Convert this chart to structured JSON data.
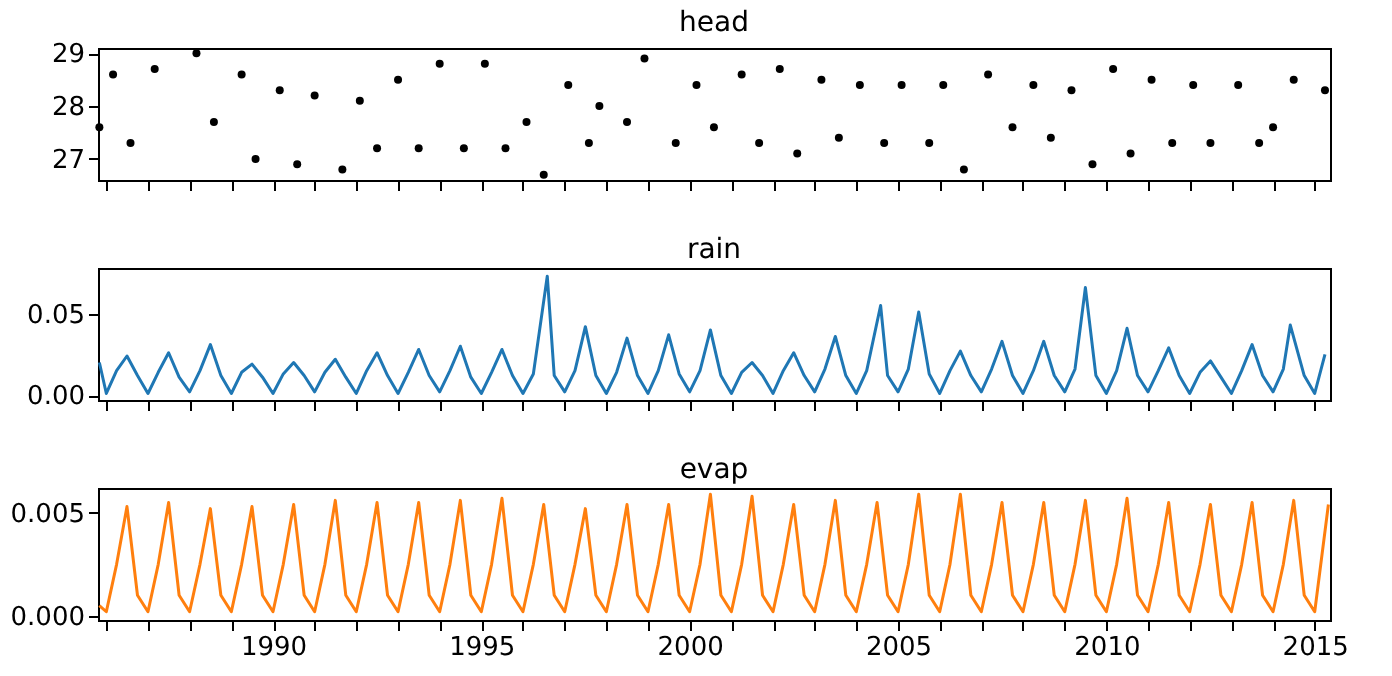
{
  "chart_data": [
    {
      "type": "scatter",
      "title": "head",
      "color": "#000000",
      "marker": "circle",
      "tick_labels": "y",
      "ylim": [
        26.6,
        29.1
      ],
      "yticks": [
        27,
        28,
        29
      ],
      "xlim": [
        "1985-10-20",
        "2015-05-15"
      ],
      "xticks": [
        {
          "value": "1986",
          "label": null
        },
        {
          "value": "1987",
          "label": null
        },
        {
          "value": "1988",
          "label": null
        },
        {
          "value": "1989",
          "label": null
        },
        {
          "value": "1990",
          "label": null
        },
        {
          "value": "1991",
          "label": null
        },
        {
          "value": "1992",
          "label": null
        },
        {
          "value": "1993",
          "label": null
        },
        {
          "value": "1994",
          "label": null
        },
        {
          "value": "1995",
          "label": null
        },
        {
          "value": "1996",
          "label": null
        },
        {
          "value": "1997",
          "label": null
        },
        {
          "value": "1998",
          "label": null
        },
        {
          "value": "1999",
          "label": null
        },
        {
          "value": "2000",
          "label": null
        },
        {
          "value": "2001",
          "label": null
        },
        {
          "value": "2002",
          "label": null
        },
        {
          "value": "2003",
          "label": null
        },
        {
          "value": "2004",
          "label": null
        },
        {
          "value": "2005",
          "label": null
        },
        {
          "value": "2006",
          "label": null
        },
        {
          "value": "2007",
          "label": null
        },
        {
          "value": "2008",
          "label": null
        },
        {
          "value": "2009",
          "label": null
        },
        {
          "value": "2010",
          "label": null
        },
        {
          "value": "2011",
          "label": null
        },
        {
          "value": "2012",
          "label": null
        },
        {
          "value": "2013",
          "label": null
        },
        {
          "value": "2014",
          "label": null
        },
        {
          "value": "2015",
          "label": null
        }
      ],
      "x": [
        "1985-11",
        "1986-03",
        "1986-08",
        "1987-03",
        "1988-03",
        "1988-08",
        "1989-04",
        "1989-08",
        "1990-03",
        "1990-08",
        "1991-01",
        "1991-09",
        "1992-02",
        "1992-07",
        "1993-01",
        "1993-07",
        "1994-01",
        "1994-08",
        "1995-02",
        "1995-08",
        "1996-02",
        "1996-07",
        "1997-02",
        "1997-08",
        "1997-11",
        "1998-07",
        "1998-12",
        "1999-09",
        "2000-03",
        "2000-08",
        "2001-04",
        "2001-09",
        "2002-03",
        "2002-08",
        "2003-03",
        "2003-08",
        "2004-02",
        "2004-09",
        "2005-02",
        "2005-10",
        "2006-02",
        "2006-08",
        "2007-03",
        "2007-10",
        "2008-04",
        "2008-09",
        "2009-03",
        "2009-09",
        "2010-03",
        "2010-08",
        "2011-02",
        "2011-08",
        "2012-02",
        "2012-07",
        "2013-03",
        "2013-09",
        "2014-01",
        "2014-07",
        "2015-04"
      ],
      "values": [
        27.6,
        28.6,
        27.3,
        28.7,
        29.0,
        27.7,
        28.6,
        27.0,
        28.3,
        26.9,
        28.2,
        26.8,
        28.1,
        27.2,
        28.5,
        27.2,
        28.8,
        27.2,
        28.8,
        27.2,
        27.7,
        26.7,
        28.4,
        27.3,
        28.0,
        27.7,
        28.9,
        27.3,
        28.4,
        27.6,
        28.6,
        27.3,
        28.7,
        27.1,
        28.5,
        27.4,
        28.4,
        27.3,
        28.4,
        27.3,
        28.4,
        26.8,
        28.6,
        27.6,
        28.4,
        27.4,
        28.3,
        26.9,
        28.7,
        27.1,
        28.5,
        27.3,
        28.4,
        27.3,
        28.4,
        27.3,
        27.6,
        28.5,
        28.3
      ]
    },
    {
      "type": "line",
      "title": "rain",
      "color": "#1f77b4",
      "tick_labels": "y",
      "ylim": [
        -0.003,
        0.078
      ],
      "yticks": [
        {
          "value": 0,
          "label": "0.00"
        },
        {
          "value": 0.05,
          "label": "0.05"
        }
      ],
      "xlim": [
        "1985-10-20",
        "2015-05-15"
      ],
      "xticks": [
        {
          "value": "1986",
          "label": null
        },
        {
          "value": "1987",
          "label": null
        },
        {
          "value": "1988",
          "label": null
        },
        {
          "value": "1989",
          "label": null
        },
        {
          "value": "1990",
          "label": null
        },
        {
          "value": "1991",
          "label": null
        },
        {
          "value": "1992",
          "label": null
        },
        {
          "value": "1993",
          "label": null
        },
        {
          "value": "1994",
          "label": null
        },
        {
          "value": "1995",
          "label": null
        },
        {
          "value": "1996",
          "label": null
        },
        {
          "value": "1997",
          "label": null
        },
        {
          "value": "1998",
          "label": null
        },
        {
          "value": "1999",
          "label": null
        },
        {
          "value": "2000",
          "label": null
        },
        {
          "value": "2001",
          "label": null
        },
        {
          "value": "2002",
          "label": null
        },
        {
          "value": "2003",
          "label": null
        },
        {
          "value": "2004",
          "label": null
        },
        {
          "value": "2005",
          "label": null
        },
        {
          "value": "2006",
          "label": null
        },
        {
          "value": "2007",
          "label": null
        },
        {
          "value": "2008",
          "label": null
        },
        {
          "value": "2009",
          "label": null
        },
        {
          "value": "2010",
          "label": null
        },
        {
          "value": "2011",
          "label": null
        },
        {
          "value": "2012",
          "label": null
        },
        {
          "value": "2013",
          "label": null
        },
        {
          "value": "2014",
          "label": null
        },
        {
          "value": "2015",
          "label": null
        }
      ],
      "x": [
        "1985-11",
        "1986-01",
        "1986-04",
        "1986-07",
        "1986-10",
        "1987-01",
        "1987-04",
        "1987-07",
        "1987-10",
        "1988-01",
        "1988-04",
        "1988-07",
        "1988-10",
        "1989-01",
        "1989-04",
        "1989-07",
        "1989-10",
        "1990-01",
        "1990-04",
        "1990-07",
        "1990-10",
        "1991-01",
        "1991-04",
        "1991-07",
        "1991-10",
        "1992-01",
        "1992-04",
        "1992-07",
        "1992-10",
        "1993-01",
        "1993-04",
        "1993-07",
        "1993-10",
        "1994-01",
        "1994-04",
        "1994-07",
        "1994-10",
        "1995-01",
        "1995-04",
        "1995-07",
        "1995-10",
        "1996-01",
        "1996-04",
        "1996-08",
        "1996-10",
        "1997-01",
        "1997-04",
        "1997-07",
        "1997-10",
        "1998-01",
        "1998-04",
        "1998-07",
        "1998-10",
        "1999-01",
        "1999-04",
        "1999-07",
        "1999-10",
        "2000-01",
        "2000-04",
        "2000-07",
        "2000-10",
        "2001-01",
        "2001-04",
        "2001-07",
        "2001-10",
        "2002-01",
        "2002-04",
        "2002-07",
        "2002-10",
        "2003-01",
        "2003-04",
        "2003-07",
        "2003-10",
        "2004-01",
        "2004-04",
        "2004-08",
        "2004-10",
        "2005-01",
        "2005-04",
        "2005-07",
        "2005-10",
        "2006-01",
        "2006-04",
        "2006-07",
        "2006-10",
        "2007-01",
        "2007-04",
        "2007-07",
        "2007-10",
        "2008-01",
        "2008-04",
        "2008-07",
        "2008-10",
        "2009-01",
        "2009-04",
        "2009-07",
        "2009-10",
        "2010-01",
        "2010-04",
        "2010-07",
        "2010-10",
        "2011-01",
        "2011-04",
        "2011-07",
        "2011-10",
        "2012-01",
        "2012-04",
        "2012-07",
        "2012-10",
        "2013-01",
        "2013-04",
        "2013-07",
        "2013-10",
        "2014-01",
        "2014-04",
        "2014-06",
        "2014-10",
        "2015-01",
        "2015-04"
      ],
      "values": [
        0.02,
        0.001,
        0.015,
        0.024,
        0.012,
        0.001,
        0.014,
        0.026,
        0.011,
        0.002,
        0.015,
        0.031,
        0.012,
        0.001,
        0.014,
        0.019,
        0.011,
        0.001,
        0.013,
        0.02,
        0.012,
        0.002,
        0.014,
        0.022,
        0.011,
        0.001,
        0.015,
        0.026,
        0.012,
        0.001,
        0.014,
        0.028,
        0.012,
        0.002,
        0.015,
        0.03,
        0.011,
        0.001,
        0.014,
        0.028,
        0.012,
        0.001,
        0.013,
        0.073,
        0.012,
        0.002,
        0.015,
        0.042,
        0.012,
        0.001,
        0.014,
        0.035,
        0.012,
        0.001,
        0.015,
        0.037,
        0.013,
        0.002,
        0.015,
        0.04,
        0.012,
        0.001,
        0.014,
        0.02,
        0.012,
        0.001,
        0.015,
        0.026,
        0.012,
        0.002,
        0.016,
        0.036,
        0.012,
        0.001,
        0.015,
        0.055,
        0.012,
        0.002,
        0.016,
        0.051,
        0.013,
        0.001,
        0.015,
        0.027,
        0.012,
        0.002,
        0.016,
        0.033,
        0.012,
        0.001,
        0.015,
        0.033,
        0.012,
        0.002,
        0.016,
        0.066,
        0.012,
        0.001,
        0.015,
        0.041,
        0.012,
        0.002,
        0.015,
        0.029,
        0.012,
        0.001,
        0.014,
        0.021,
        0.011,
        0.001,
        0.015,
        0.031,
        0.012,
        0.002,
        0.016,
        0.043,
        0.012,
        0.001,
        0.025
      ]
    },
    {
      "type": "line",
      "title": "evap",
      "color": "#ff7f0e",
      "ylim": [
        -0.0002,
        0.0062
      ],
      "yticks": [
        {
          "value": 0,
          "label": "0.000"
        },
        {
          "value": 0.005,
          "label": "0.005"
        }
      ],
      "xlim": [
        "1985-10-20",
        "2015-05-15"
      ],
      "xticks": [
        {
          "value": "1986",
          "label": null
        },
        {
          "value": "1987",
          "label": null
        },
        {
          "value": "1988",
          "label": null
        },
        {
          "value": "1989",
          "label": null
        },
        {
          "value": "1990",
          "label": "1990"
        },
        {
          "value": "1991",
          "label": null
        },
        {
          "value": "1992",
          "label": null
        },
        {
          "value": "1993",
          "label": null
        },
        {
          "value": "1994",
          "label": null
        },
        {
          "value": "1995",
          "label": "1995"
        },
        {
          "value": "1996",
          "label": null
        },
        {
          "value": "1997",
          "label": null
        },
        {
          "value": "1998",
          "label": null
        },
        {
          "value": "1999",
          "label": null
        },
        {
          "value": "2000",
          "label": "2000"
        },
        {
          "value": "2001",
          "label": null
        },
        {
          "value": "2002",
          "label": null
        },
        {
          "value": "2003",
          "label": null
        },
        {
          "value": "2004",
          "label": null
        },
        {
          "value": "2005",
          "label": "2005"
        },
        {
          "value": "2006",
          "label": null
        },
        {
          "value": "2007",
          "label": null
        },
        {
          "value": "2008",
          "label": null
        },
        {
          "value": "2009",
          "label": null
        },
        {
          "value": "2010",
          "label": "2010"
        },
        {
          "value": "2011",
          "label": null
        },
        {
          "value": "2012",
          "label": null
        },
        {
          "value": "2013",
          "label": null
        },
        {
          "value": "2014",
          "label": null
        },
        {
          "value": "2015",
          "label": "2015"
        }
      ],
      "x": [
        "1985-11",
        "1986-01",
        "1986-04",
        "1986-07",
        "1986-10",
        "1987-01",
        "1987-04",
        "1987-07",
        "1987-10",
        "1988-01",
        "1988-04",
        "1988-07",
        "1988-10",
        "1989-01",
        "1989-04",
        "1989-07",
        "1989-10",
        "1990-01",
        "1990-04",
        "1990-07",
        "1990-10",
        "1991-01",
        "1991-04",
        "1991-07",
        "1991-10",
        "1992-01",
        "1992-04",
        "1992-07",
        "1992-10",
        "1993-01",
        "1993-04",
        "1993-07",
        "1993-10",
        "1994-01",
        "1994-04",
        "1994-07",
        "1994-10",
        "1995-01",
        "1995-04",
        "1995-07",
        "1995-10",
        "1996-01",
        "1996-04",
        "1996-07",
        "1996-10",
        "1997-01",
        "1997-04",
        "1997-07",
        "1997-10",
        "1998-01",
        "1998-04",
        "1998-07",
        "1998-10",
        "1999-01",
        "1999-04",
        "1999-07",
        "1999-10",
        "2000-01",
        "2000-04",
        "2000-07",
        "2000-10",
        "2001-01",
        "2001-04",
        "2001-07",
        "2001-10",
        "2002-01",
        "2002-04",
        "2002-07",
        "2002-10",
        "2003-01",
        "2003-04",
        "2003-07",
        "2003-10",
        "2004-01",
        "2004-04",
        "2004-07",
        "2004-10",
        "2005-01",
        "2005-04",
        "2005-07",
        "2005-10",
        "2006-01",
        "2006-04",
        "2006-07",
        "2006-10",
        "2007-01",
        "2007-04",
        "2007-07",
        "2007-10",
        "2008-01",
        "2008-04",
        "2008-07",
        "2008-10",
        "2009-01",
        "2009-04",
        "2009-07",
        "2009-10",
        "2010-01",
        "2010-04",
        "2010-07",
        "2010-10",
        "2011-01",
        "2011-04",
        "2011-07",
        "2011-10",
        "2012-01",
        "2012-04",
        "2012-07",
        "2012-10",
        "2013-01",
        "2013-04",
        "2013-07",
        "2013-10",
        "2014-01",
        "2014-04",
        "2014-07",
        "2014-10",
        "2015-01",
        "2015-05"
      ],
      "values": [
        0.0005,
        0.0002,
        0.0025,
        0.0053,
        0.001,
        0.0002,
        0.0025,
        0.0055,
        0.001,
        0.0002,
        0.0025,
        0.0052,
        0.001,
        0.0002,
        0.0025,
        0.0053,
        0.001,
        0.0002,
        0.0025,
        0.0054,
        0.001,
        0.0002,
        0.0025,
        0.0056,
        0.001,
        0.0002,
        0.0025,
        0.0055,
        0.001,
        0.0002,
        0.0025,
        0.0055,
        0.001,
        0.0002,
        0.0025,
        0.0056,
        0.001,
        0.0002,
        0.0025,
        0.0057,
        0.001,
        0.0002,
        0.0025,
        0.0054,
        0.001,
        0.0002,
        0.0025,
        0.0052,
        0.001,
        0.0002,
        0.0025,
        0.0054,
        0.001,
        0.0002,
        0.0025,
        0.0054,
        0.001,
        0.0002,
        0.0025,
        0.0059,
        0.001,
        0.0002,
        0.0025,
        0.0058,
        0.001,
        0.0002,
        0.0025,
        0.0054,
        0.001,
        0.0002,
        0.0025,
        0.0056,
        0.001,
        0.0002,
        0.0025,
        0.0055,
        0.001,
        0.0002,
        0.0025,
        0.0059,
        0.001,
        0.0002,
        0.0025,
        0.0059,
        0.001,
        0.0002,
        0.0025,
        0.0055,
        0.001,
        0.0002,
        0.0025,
        0.0055,
        0.001,
        0.0002,
        0.0025,
        0.0056,
        0.001,
        0.0002,
        0.0025,
        0.0057,
        0.001,
        0.0002,
        0.0025,
        0.0055,
        0.001,
        0.0002,
        0.0025,
        0.0054,
        0.001,
        0.0002,
        0.0025,
        0.0055,
        0.001,
        0.0002,
        0.0025,
        0.0056,
        0.001,
        0.0002,
        0.0054
      ]
    }
  ]
}
